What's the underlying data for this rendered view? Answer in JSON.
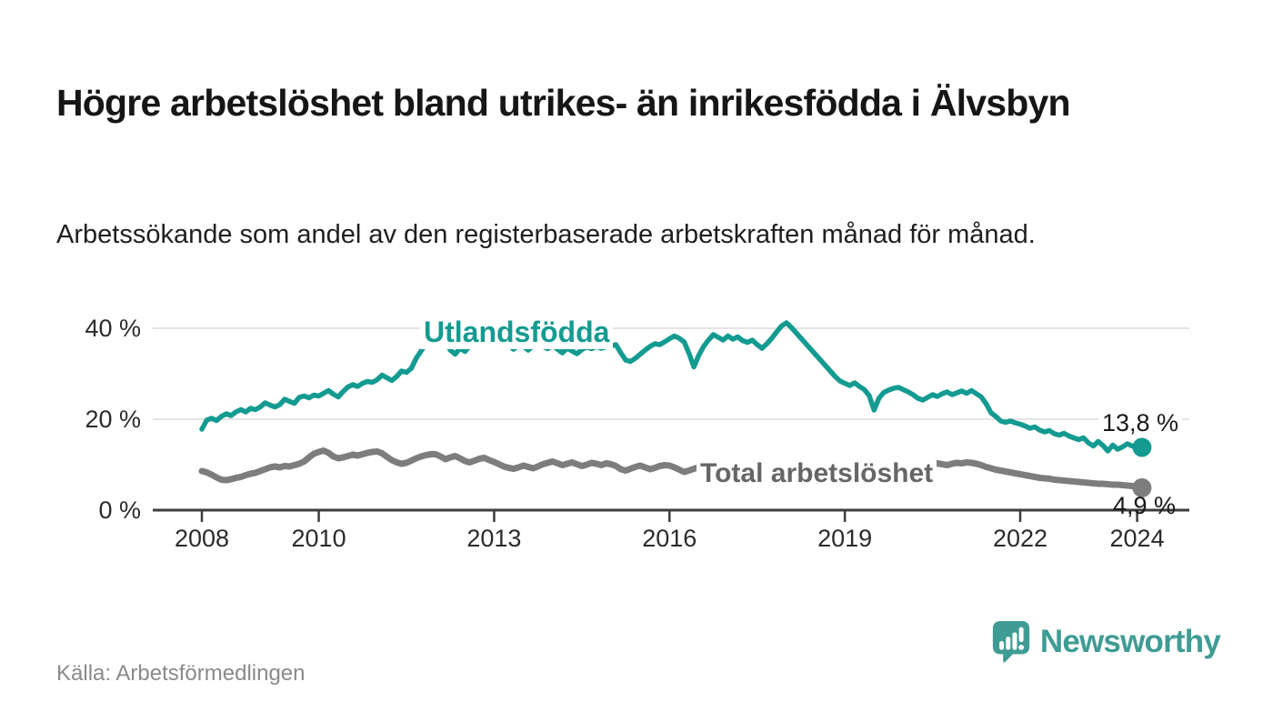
{
  "page": {
    "title": "Högre arbetslöshet bland utrikes- än inrikesfödda i Älvsbyn",
    "subtitle": "Arbetssökande som andel av den registerbaserade arbetskraften månad för månad.",
    "source": "Källa: Arbetsförmedlingen",
    "brand": {
      "name": "Newsworthy",
      "color": "#3F9C94",
      "icon": "newsworthy-speech-bubble-chart-icon"
    }
  },
  "chart_data": {
    "type": "line",
    "title": "Högre arbetslöshet bland utrikes- än inrikesfödda i Älvsbyn",
    "subtitle": "Arbetssökande som andel av den registerbaserade arbetskraften månad för månad.",
    "x_unit": "år (månadsvärden)",
    "x_start": 2008.0,
    "x_step_months": 1,
    "ylim": [
      0,
      44
    ],
    "grid": true,
    "legend": "inline-labels",
    "axis_color": "#3d3d3d",
    "grid_color": "#dcdcdc",
    "yticks": [
      {
        "label": "0 %",
        "value": 0
      },
      {
        "label": "20 %",
        "value": 20
      },
      {
        "label": "40 %",
        "value": 40
      }
    ],
    "xticks": [
      {
        "label": "2008",
        "value": 2008
      },
      {
        "label": "2010",
        "value": 2010
      },
      {
        "label": "2013",
        "value": 2013
      },
      {
        "label": "2016",
        "value": 2016
      },
      {
        "label": "2019",
        "value": 2019
      },
      {
        "label": "2022",
        "value": 2022
      },
      {
        "label": "2024",
        "value": 2024
      }
    ],
    "series": [
      {
        "name": "Utlandsfödda",
        "slug": "utlandsfodda",
        "color": "#149B91",
        "label_color": "#149B91",
        "stroke_width": 5.5,
        "end_label": "13,8 %",
        "end_value": 13.8,
        "values": [
          17.8,
          19.8,
          20.2,
          19.7,
          20.6,
          21.2,
          20.8,
          21.6,
          22.1,
          21.6,
          22.4,
          22.1,
          22.7,
          23.6,
          23.1,
          22.7,
          23.2,
          24.4,
          23.9,
          23.5,
          24.8,
          25.1,
          24.7,
          25.3,
          25.1,
          25.7,
          26.3,
          25.5,
          24.9,
          26.1,
          27.1,
          27.6,
          27.2,
          27.9,
          28.3,
          28.1,
          28.7,
          29.7,
          29.1,
          28.5,
          29.4,
          30.6,
          30.3,
          31.2,
          33.4,
          35.0,
          36.6,
          37.6,
          38.3,
          38.8,
          37.2,
          35.2,
          34.3,
          35.6,
          34.9,
          36.1,
          37.6,
          38.3,
          38.9,
          38.4,
          37.2,
          36.4,
          36.9,
          36.2,
          35.4,
          36.3,
          36.0,
          35.2,
          36.1,
          36.6,
          36.0,
          35.5,
          36.2,
          35.4,
          34.6,
          35.6,
          35.0,
          34.4,
          35.3,
          35.9,
          35.5,
          36.0,
          35.6,
          35.9,
          36.1,
          36.4,
          34.6,
          33.0,
          32.7,
          33.4,
          34.3,
          35.2,
          36.0,
          36.6,
          36.4,
          37.0,
          37.7,
          38.3,
          37.8,
          37.0,
          34.5,
          31.5,
          34.0,
          36.0,
          37.4,
          38.6,
          38.0,
          37.4,
          38.3,
          37.6,
          38.1,
          37.3,
          36.9,
          37.4,
          36.4,
          35.6,
          36.6,
          37.8,
          39.2,
          40.5,
          41.2,
          40.2,
          39.0,
          37.8,
          36.6,
          35.4,
          34.2,
          33.0,
          31.8,
          30.6,
          29.4,
          28.4,
          27.9,
          27.4,
          28.0,
          27.2,
          26.5,
          25.2,
          22.0,
          24.6,
          25.9,
          26.4,
          26.8,
          27.0,
          26.5,
          26.0,
          25.4,
          24.6,
          24.2,
          24.8,
          25.4,
          25.0,
          25.6,
          26.0,
          25.4,
          25.8,
          26.2,
          25.7,
          26.3,
          25.6,
          24.9,
          23.4,
          21.4,
          20.6,
          19.6,
          19.3,
          19.6,
          19.2,
          18.9,
          18.5,
          18.0,
          18.3,
          17.6,
          17.2,
          17.5,
          16.8,
          16.5,
          16.9,
          16.3,
          15.9,
          15.5,
          15.9,
          14.8,
          14.1,
          15.1,
          14.2,
          13.0,
          14.3,
          13.4,
          13.9,
          14.6,
          14.1,
          13.9,
          13.8
        ]
      },
      {
        "name": "Total arbetslöshet",
        "slug": "total-arbetsloshet",
        "color": "#7D7D7D",
        "label_color": "#666666",
        "stroke_width": 7,
        "end_label": "4,9 %",
        "end_value": 4.9,
        "values": [
          8.6,
          8.3,
          7.8,
          7.2,
          6.7,
          6.6,
          6.8,
          7.1,
          7.3,
          7.7,
          8.0,
          8.2,
          8.6,
          9.0,
          9.4,
          9.6,
          9.4,
          9.7,
          9.6,
          9.9,
          10.2,
          10.7,
          11.6,
          12.4,
          12.8,
          13.1,
          12.6,
          11.8,
          11.4,
          11.6,
          11.9,
          12.2,
          12.0,
          12.3,
          12.6,
          12.8,
          12.9,
          12.5,
          11.7,
          11.0,
          10.5,
          10.2,
          10.4,
          10.9,
          11.4,
          11.8,
          12.1,
          12.3,
          12.3,
          11.8,
          11.2,
          11.6,
          11.9,
          11.4,
          10.8,
          10.5,
          10.9,
          11.3,
          11.5,
          11.0,
          10.6,
          10.1,
          9.6,
          9.3,
          9.1,
          9.4,
          9.8,
          9.5,
          9.2,
          9.6,
          10.1,
          10.4,
          10.7,
          10.3,
          9.9,
          10.2,
          10.5,
          10.1,
          9.7,
          10.0,
          10.4,
          10.2,
          9.9,
          10.3,
          10.1,
          9.7,
          9.0,
          8.7,
          9.1,
          9.5,
          9.8,
          9.4,
          9.0,
          9.3,
          9.7,
          9.9,
          9.8,
          9.4,
          8.9,
          8.4,
          8.7,
          9.1,
          9.4,
          9.0,
          8.7,
          9.0,
          9.3,
          9.1,
          8.9,
          9.2,
          9.5,
          9.1,
          8.8,
          9.0,
          9.3,
          9.6,
          9.2,
          8.9,
          9.1,
          9.4,
          9.2,
          8.9,
          8.5,
          8.2,
          8.4,
          8.7,
          8.9,
          8.6,
          8.3,
          8.5,
          8.8,
          9.0,
          8.8,
          8.5,
          8.7,
          9.0,
          8.8,
          8.5,
          8.3,
          8.6,
          8.9,
          9.1,
          8.9,
          9.2,
          9.4,
          9.6,
          9.9,
          10.2,
          10.0,
          9.8,
          10.0,
          10.3,
          10.1,
          9.9,
          10.2,
          10.4,
          10.3,
          10.5,
          10.4,
          10.2,
          9.9,
          9.5,
          9.2,
          8.9,
          8.7,
          8.5,
          8.3,
          8.1,
          7.9,
          7.7,
          7.5,
          7.3,
          7.1,
          7.0,
          6.9,
          6.7,
          6.6,
          6.5,
          6.4,
          6.3,
          6.2,
          6.1,
          6.0,
          5.9,
          5.8,
          5.8,
          5.7,
          5.6,
          5.6,
          5.5,
          5.4,
          5.3,
          5.1,
          4.9
        ]
      }
    ]
  }
}
